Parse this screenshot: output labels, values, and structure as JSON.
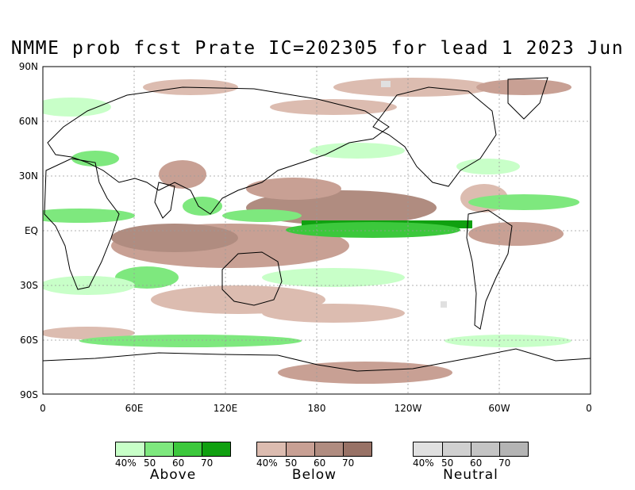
{
  "title": "NMME prob fcst Prate IC=202305 for lead 1 2023 Jun",
  "map": {
    "lat_labels": [
      "90N",
      "60N",
      "30N",
      "EQ",
      "30S",
      "60S",
      "90S"
    ],
    "lon_labels": [
      "0",
      "60E",
      "120E",
      "180",
      "120W",
      "60W",
      "0"
    ],
    "colors": {
      "land_outline": "#000000",
      "grid": "#999999"
    }
  },
  "legends": [
    {
      "category": "Above",
      "colors": [
        "#c8ffc8",
        "#7ee87e",
        "#3cc83c",
        "#10a010"
      ],
      "ticks": [
        "40%",
        "50",
        "60",
        "70"
      ]
    },
    {
      "category": "Below",
      "colors": [
        "#dcbcb0",
        "#c8a094",
        "#b08c80",
        "#987266"
      ],
      "ticks": [
        "40%",
        "50",
        "60",
        "70"
      ]
    },
    {
      "category": "Neutral",
      "colors": [
        "#e0e0e0",
        "#d0d0d0",
        "#c4c4c4",
        "#b4b4b4"
      ],
      "ticks": [
        "40%",
        "50",
        "60",
        "70"
      ]
    }
  ]
}
